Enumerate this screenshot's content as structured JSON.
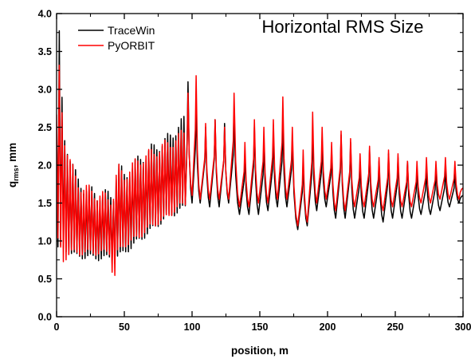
{
  "chart_data": {
    "type": "line",
    "title": "Horizontal RMS Size",
    "xlabel": "position, m",
    "ylabel": {
      "main": "q",
      "sub": "rms",
      "rest": ", mm"
    },
    "xlim": [
      0,
      300
    ],
    "ylim": [
      0.0,
      4.0
    ],
    "xticks": [
      "0",
      "50",
      "100",
      "150",
      "200",
      "250",
      "300"
    ],
    "yticks": [
      "0.0",
      "0.5",
      "1.0",
      "1.5",
      "2.0",
      "2.5",
      "3.0",
      "3.5",
      "4.0"
    ],
    "grid": false,
    "legend_position": "top-left",
    "series": [
      {
        "name": "TraceWin",
        "color": "#000000",
        "envelope": [
          [
            0,
            0.9,
            2.5
          ],
          [
            2,
            0.9,
            3.7
          ],
          [
            5,
            0.9,
            2.4
          ],
          [
            10,
            0.85,
            2.1
          ],
          [
            15,
            0.8,
            1.8
          ],
          [
            20,
            0.8,
            1.7
          ],
          [
            30,
            0.78,
            1.6
          ],
          [
            40,
            0.78,
            1.6
          ],
          [
            42,
            0.7,
            1.6
          ],
          [
            45,
            0.8,
            2.0
          ],
          [
            50,
            0.85,
            1.85
          ],
          [
            60,
            1.0,
            2.05
          ],
          [
            70,
            1.15,
            2.2
          ],
          [
            80,
            1.3,
            2.3
          ],
          [
            90,
            1.4,
            2.5
          ],
          [
            95,
            1.45,
            2.6
          ]
        ],
        "peaks": [
          [
            97,
            3.1
          ],
          [
            103,
            2.8
          ],
          [
            110,
            2.5
          ],
          [
            117,
            2.6
          ],
          [
            124,
            2.55
          ],
          [
            131,
            2.65
          ],
          [
            139,
            2.15
          ],
          [
            146,
            2.5
          ],
          [
            153,
            2.3
          ],
          [
            160,
            2.4
          ],
          [
            167,
            2.55
          ],
          [
            174,
            2.35
          ],
          [
            182,
            2.05
          ],
          [
            189,
            2.45
          ],
          [
            196,
            2.3
          ],
          [
            203,
            2.2
          ],
          [
            210,
            2.4
          ],
          [
            217,
            2.3
          ],
          [
            224,
            2.05
          ],
          [
            231,
            2.2
          ],
          [
            238,
            2.05
          ],
          [
            245,
            2.15
          ],
          [
            252,
            2.1
          ],
          [
            259,
            2.05
          ],
          [
            266,
            1.95
          ],
          [
            273,
            1.95
          ],
          [
            280,
            1.95
          ],
          [
            287,
            1.95
          ],
          [
            294,
            1.9
          ]
        ],
        "troughs": [
          [
            100,
            1.5
          ],
          [
            106,
            1.5
          ],
          [
            113,
            1.45
          ],
          [
            120,
            1.45
          ],
          [
            127,
            1.5
          ],
          [
            135,
            1.35
          ],
          [
            142,
            1.35
          ],
          [
            149,
            1.35
          ],
          [
            156,
            1.4
          ],
          [
            163,
            1.45
          ],
          [
            170,
            1.45
          ],
          [
            178,
            1.15
          ],
          [
            185,
            1.2
          ],
          [
            192,
            1.4
          ],
          [
            199,
            1.45
          ],
          [
            206,
            1.3
          ],
          [
            213,
            1.3
          ],
          [
            220,
            1.3
          ],
          [
            227,
            1.3
          ],
          [
            234,
            1.3
          ],
          [
            241,
            1.25
          ],
          [
            248,
            1.3
          ],
          [
            255,
            1.3
          ],
          [
            262,
            1.3
          ],
          [
            269,
            1.35
          ],
          [
            276,
            1.35
          ],
          [
            283,
            1.4
          ],
          [
            290,
            1.45
          ],
          [
            297,
            1.5
          ],
          [
            300,
            1.6
          ]
        ]
      },
      {
        "name": "PyORBIT",
        "color": "#ff0000",
        "envelope": [
          [
            0,
            1.0,
            2.6
          ],
          [
            1,
            1.0,
            3.5
          ],
          [
            3,
            0.9,
            3.0
          ],
          [
            5,
            0.75,
            2.4
          ],
          [
            10,
            0.85,
            2.05
          ],
          [
            15,
            0.85,
            1.75
          ],
          [
            20,
            0.85,
            1.7
          ],
          [
            30,
            0.85,
            1.6
          ],
          [
            40,
            0.85,
            1.55
          ],
          [
            42,
            0.4,
            1.6
          ],
          [
            45,
            0.85,
            1.95
          ],
          [
            50,
            0.95,
            1.85
          ],
          [
            60,
            1.05,
            2.05
          ],
          [
            70,
            1.2,
            2.15
          ],
          [
            80,
            1.3,
            2.25
          ],
          [
            90,
            1.45,
            2.35
          ],
          [
            95,
            1.5,
            2.45
          ]
        ],
        "peaks": [
          [
            97,
            2.95
          ],
          [
            103,
            3.18
          ],
          [
            110,
            2.55
          ],
          [
            117,
            2.6
          ],
          [
            124,
            2.5
          ],
          [
            131,
            2.95
          ],
          [
            139,
            2.3
          ],
          [
            146,
            2.6
          ],
          [
            153,
            2.5
          ],
          [
            160,
            2.6
          ],
          [
            167,
            2.9
          ],
          [
            174,
            2.5
          ],
          [
            182,
            2.2
          ],
          [
            189,
            2.7
          ],
          [
            196,
            2.5
          ],
          [
            203,
            2.3
          ],
          [
            210,
            2.45
          ],
          [
            217,
            2.35
          ],
          [
            224,
            2.15
          ],
          [
            231,
            2.25
          ],
          [
            238,
            2.1
          ],
          [
            245,
            2.2
          ],
          [
            252,
            2.15
          ],
          [
            259,
            2.05
          ],
          [
            266,
            2.05
          ],
          [
            273,
            2.1
          ],
          [
            280,
            2.05
          ],
          [
            287,
            2.1
          ],
          [
            294,
            2.05
          ]
        ],
        "troughs": [
          [
            100,
            1.6
          ],
          [
            106,
            1.55
          ],
          [
            113,
            1.55
          ],
          [
            120,
            1.55
          ],
          [
            127,
            1.55
          ],
          [
            135,
            1.45
          ],
          [
            142,
            1.45
          ],
          [
            149,
            1.5
          ],
          [
            156,
            1.5
          ],
          [
            163,
            1.55
          ],
          [
            170,
            1.55
          ],
          [
            178,
            1.2
          ],
          [
            185,
            1.25
          ],
          [
            192,
            1.5
          ],
          [
            199,
            1.55
          ],
          [
            206,
            1.4
          ],
          [
            213,
            1.4
          ],
          [
            220,
            1.45
          ],
          [
            227,
            1.45
          ],
          [
            234,
            1.45
          ],
          [
            241,
            1.4
          ],
          [
            248,
            1.45
          ],
          [
            255,
            1.45
          ],
          [
            262,
            1.45
          ],
          [
            269,
            1.5
          ],
          [
            276,
            1.5
          ],
          [
            283,
            1.55
          ],
          [
            290,
            1.55
          ],
          [
            297,
            1.55
          ],
          [
            300,
            1.7
          ]
        ]
      }
    ]
  }
}
